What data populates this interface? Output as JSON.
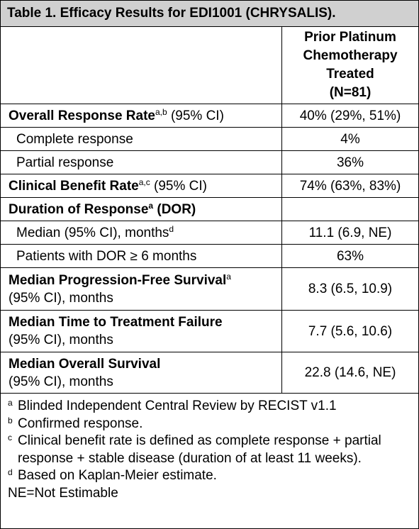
{
  "title": "Table 1. Efficacy Results for EDI1001 (CHRYSALIS).",
  "column_header": {
    "line1": "Prior Platinum",
    "line2": "Chemotherapy",
    "line3": "Treated",
    "line4": "(N=81)"
  },
  "rows": [
    {
      "label": "Overall Response Rate",
      "sup": "a,b",
      "suffix": " (95% CI)",
      "value": "40% (29%, 51%)"
    },
    {
      "label": "Complete response",
      "value": "4%"
    },
    {
      "label": "Partial response",
      "value": "36%"
    },
    {
      "label": "Clinical Benefit Rate",
      "sup": "a,c",
      "suffix": " (95% CI)",
      "value": "74% (63%, 83%)"
    },
    {
      "label": "Duration of Response",
      "sup": "a",
      "label2": " (DOR)",
      "value": ""
    },
    {
      "label": "Median (95% CI), months",
      "sup": "d",
      "value": "11.1 (6.9, NE)"
    },
    {
      "label": "Patients with DOR ≥ 6 months",
      "value": "63%"
    },
    {
      "label": "Median Progression-Free Survival",
      "sup": "a",
      "line2": "(95% CI), months",
      "value": "8.3 (6.5, 10.9)"
    },
    {
      "label": "Median Time to Treatment Failure",
      "line2": "(95% CI), months",
      "value": "7.7 (5.6, 10.6)"
    },
    {
      "label": "Median Overall Survival",
      "line2": "(95% CI), months",
      "value": "22.8 (14.6, NE)"
    }
  ],
  "footnotes": [
    {
      "mark": "a",
      "text": "Blinded Independent Central Review by RECIST v1.1"
    },
    {
      "mark": "b",
      "text": "Confirmed response."
    },
    {
      "mark": "c",
      "text": "Clinical benefit rate is defined as complete response + partial response + stable disease (duration of at least 11 weeks)."
    },
    {
      "mark": "d",
      "text": "Based on Kaplan-Meier estimate."
    }
  ],
  "abbrev": "NE=Not Estimable"
}
